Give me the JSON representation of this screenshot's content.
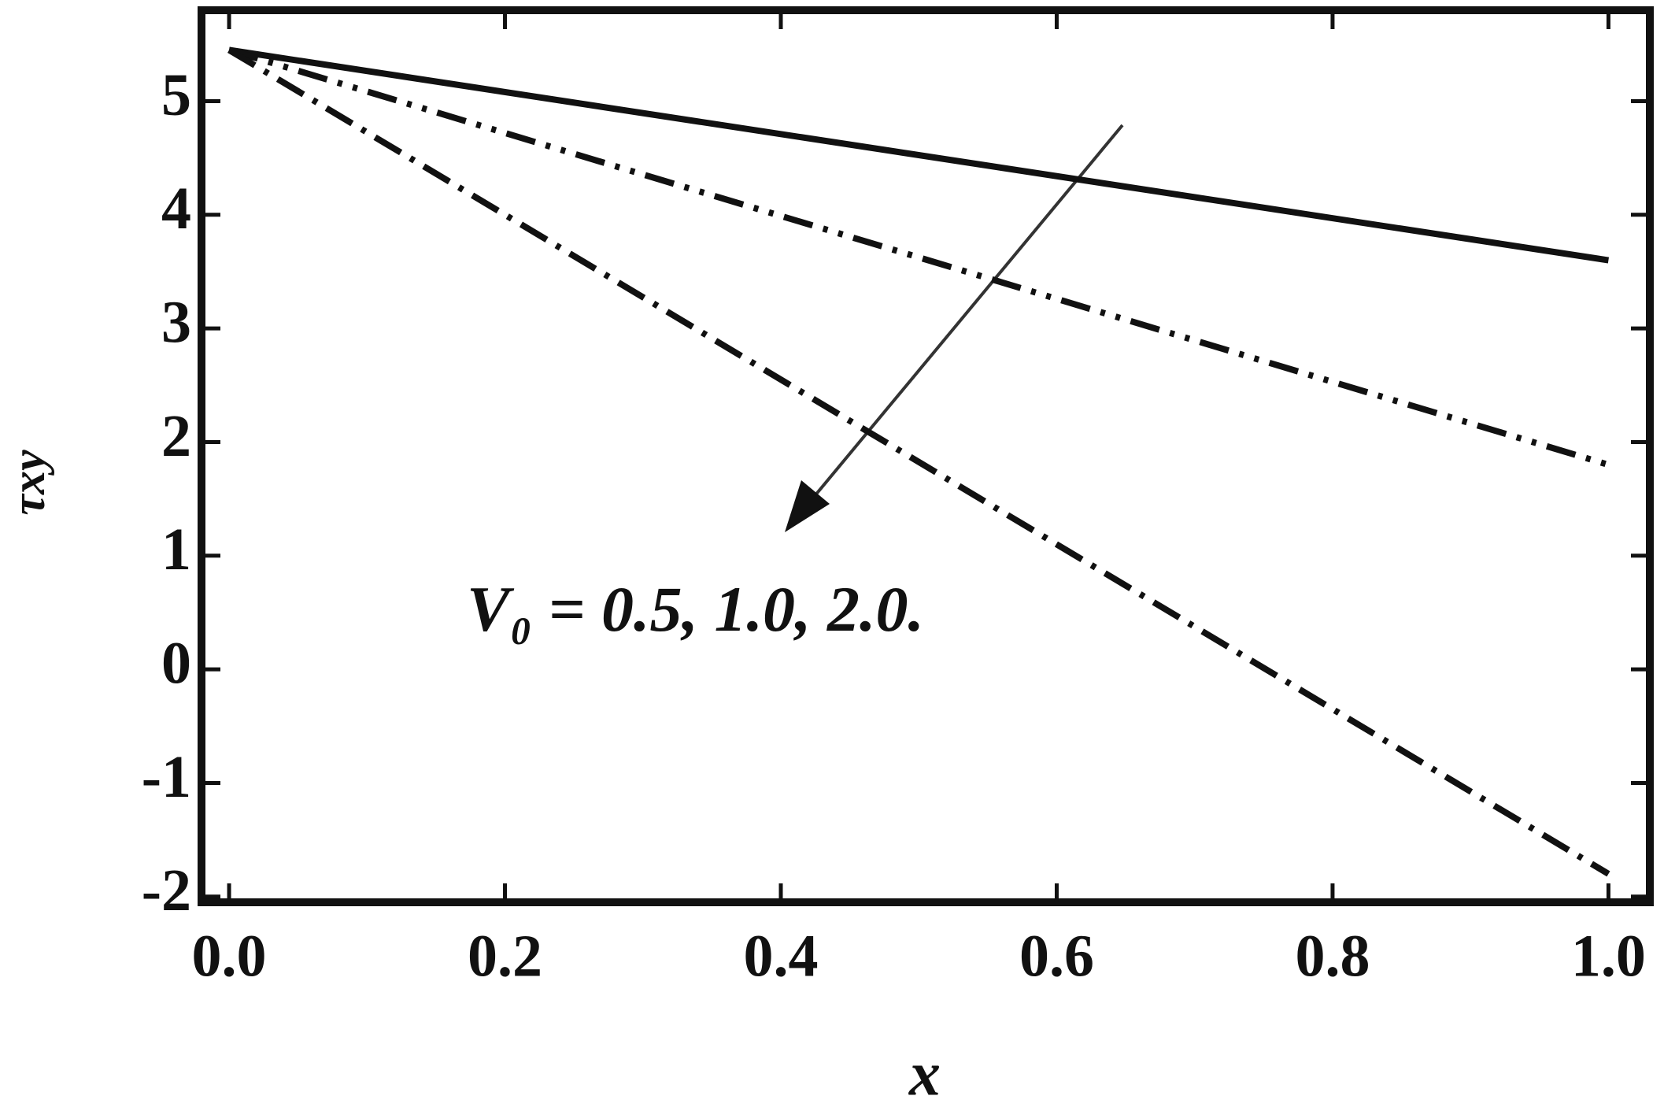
{
  "chart_data": {
    "type": "line",
    "x_label": "x",
    "y_label": "τxy",
    "annotation": "V₀ = 0.5, 1.0, 2.0.",
    "x": [
      0,
      1
    ],
    "series": [
      {
        "color": "#111111",
        "style": "solid",
        "values": [
          5.45,
          3.6
        ]
      },
      {
        "color": "#111111",
        "style": "dash-dot-dot",
        "values": [
          5.45,
          1.8
        ]
      },
      {
        "color": "#111111",
        "style": "dash-dot",
        "values": [
          5.45,
          -1.8
        ]
      }
    ],
    "xlim": [
      -0.02,
      1.03
    ],
    "ylim": [
      -2.05,
      5.8
    ],
    "xticks": [
      {
        "value": 0,
        "label": "0.0"
      },
      0.2,
      0.4,
      0.6,
      0.8,
      {
        "value": 1,
        "label": "1.0"
      }
    ],
    "yticks": [
      -2,
      -1,
      0,
      1,
      2,
      3,
      4,
      5
    ],
    "grid": false
  }
}
